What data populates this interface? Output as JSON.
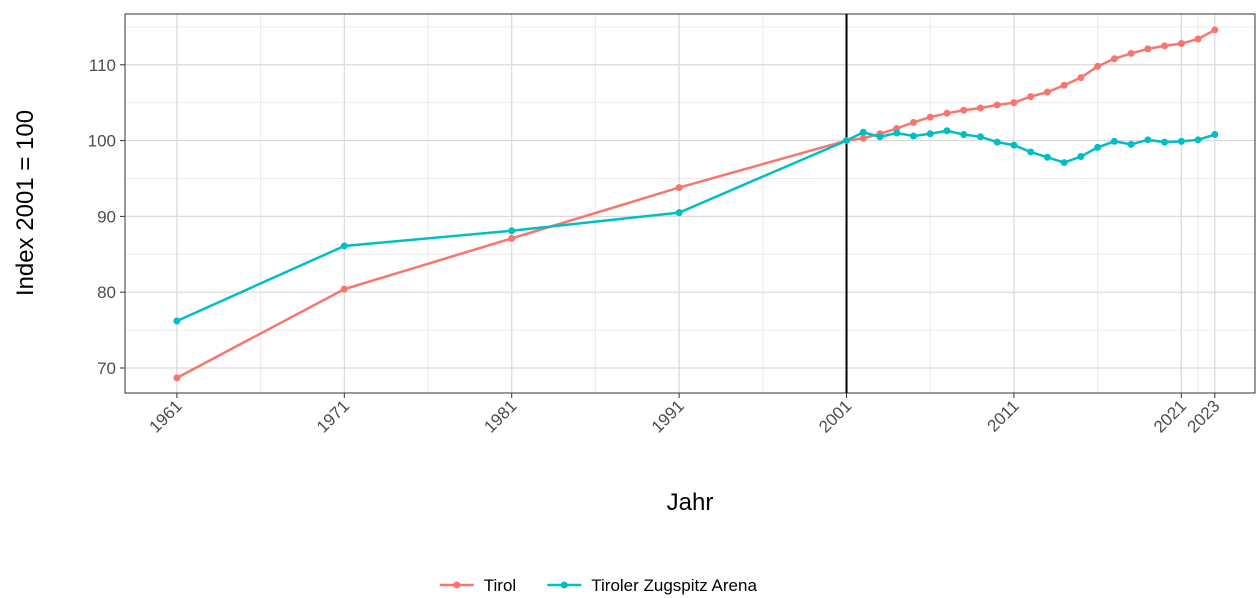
{
  "chart_data": {
    "type": "line",
    "x_label": "Jahr",
    "y_label": "Index 2001 = 100",
    "x": [
      1961,
      1971,
      1981,
      1991,
      2001,
      2002,
      2003,
      2004,
      2005,
      2006,
      2007,
      2008,
      2009,
      2010,
      2011,
      2012,
      2013,
      2014,
      2015,
      2016,
      2017,
      2018,
      2019,
      2020,
      2021,
      2022,
      2023
    ],
    "series": [
      {
        "name": "Tirol",
        "color": "#f8766d",
        "values": [
          68.7,
          80.4,
          87.1,
          93.8,
          100,
          100.3,
          100.9,
          101.6,
          102.4,
          103.1,
          103.6,
          104.0,
          104.3,
          104.7,
          105.0,
          105.8,
          106.4,
          107.3,
          108.3,
          109.8,
          110.8,
          111.5,
          112.1,
          112.5,
          112.8,
          113.4,
          114.6
        ]
      },
      {
        "name": "Tiroler Zugspitz Arena",
        "color": "#00bfc4",
        "values": [
          76.2,
          86.1,
          88.1,
          90.5,
          100,
          101.1,
          100.5,
          101.0,
          100.6,
          100.9,
          101.3,
          100.8,
          100.5,
          99.8,
          99.4,
          98.5,
          97.8,
          97.1,
          97.9,
          99.1,
          99.9,
          99.5,
          100.1,
          99.8,
          99.9,
          100.1,
          100.8
        ]
      }
    ],
    "xlim": [
      1957.9,
      2025.4
    ],
    "xticks": [
      1961,
      1971,
      1981,
      1991,
      2001,
      2011,
      2021,
      2023
    ],
    "xminor": [
      1966,
      1976,
      1986,
      1996,
      2006,
      2016,
      2022
    ],
    "ylim": [
      66.7,
      116.7
    ],
    "yticks": [
      70,
      80,
      90,
      100,
      110
    ],
    "yminor": [
      75,
      85,
      95,
      105,
      115
    ],
    "vline": 2001,
    "grid": true,
    "legend": "bottom"
  }
}
